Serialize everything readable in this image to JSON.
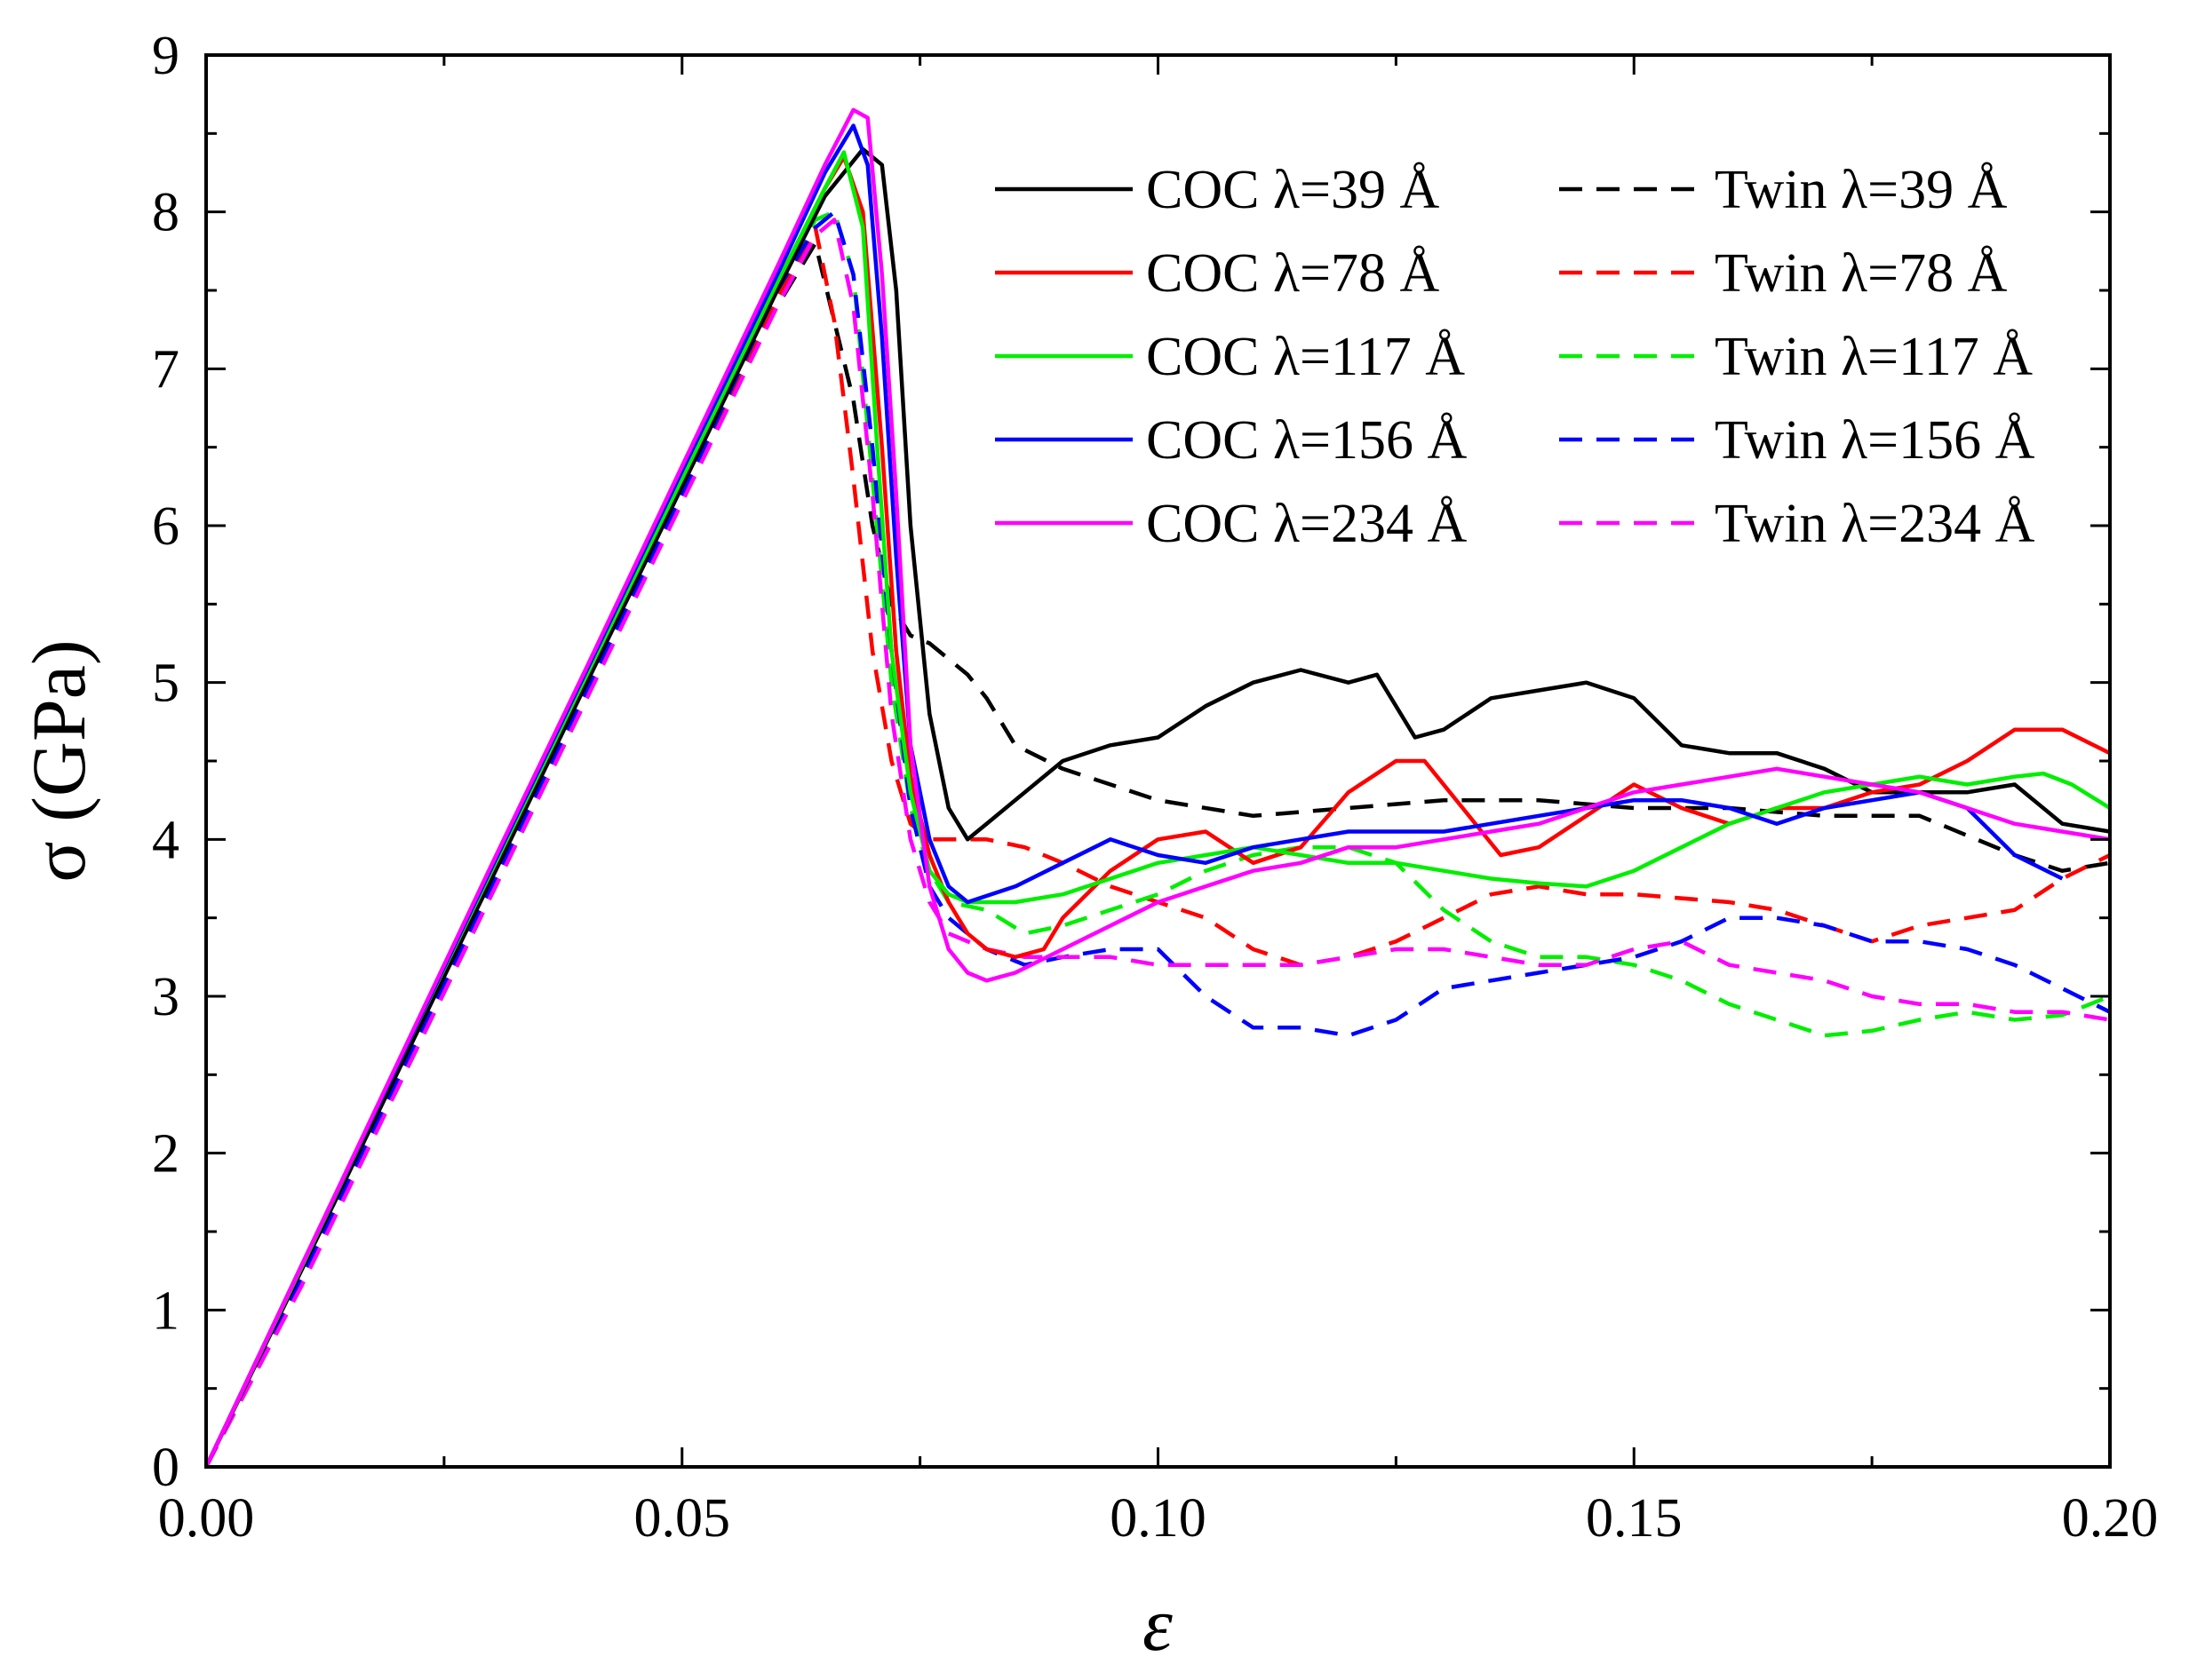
{
  "chart_data": {
    "type": "line",
    "title": "",
    "xlabel": "ε",
    "ylabel": "σ (GPa)",
    "xlim": [
      0,
      0.2
    ],
    "ylim": [
      0,
      9
    ],
    "x_ticks": [
      0,
      0.05,
      0.1,
      0.15,
      0.2
    ],
    "x_tick_labels": [
      "0.00",
      "0.05",
      "0.10",
      "0.15",
      "0.20"
    ],
    "y_ticks": [
      0,
      1,
      2,
      3,
      4,
      5,
      6,
      7,
      8,
      9
    ],
    "y_tick_labels": [
      "0",
      "1",
      "2",
      "3",
      "4",
      "5",
      "6",
      "7",
      "8",
      "9"
    ],
    "grid": false,
    "legend_position": "top-right",
    "series": [
      {
        "name": "COC λ=39 Å",
        "color": "#000000",
        "dash": "solid",
        "x": [
          0,
          0.01,
          0.02,
          0.03,
          0.04,
          0.05,
          0.06,
          0.065,
          0.069,
          0.071,
          0.0725,
          0.074,
          0.076,
          0.078,
          0.08,
          0.082,
          0.086,
          0.09,
          0.095,
          0.1,
          0.105,
          0.11,
          0.115,
          0.12,
          0.123,
          0.127,
          0.13,
          0.135,
          0.14,
          0.145,
          0.15,
          0.155,
          0.16,
          0.165,
          0.17,
          0.175,
          0.18,
          0.185,
          0.19,
          0.195,
          0.2
        ],
        "values": [
          0,
          1.25,
          2.5,
          3.75,
          5.0,
          6.25,
          7.5,
          8.1,
          8.4,
          8.3,
          7.5,
          6.0,
          4.8,
          4.2,
          4.0,
          4.1,
          4.3,
          4.5,
          4.6,
          4.65,
          4.85,
          5.0,
          5.08,
          5.0,
          5.05,
          4.65,
          4.7,
          4.9,
          4.95,
          5.0,
          4.9,
          4.6,
          4.55,
          4.55,
          4.45,
          4.3,
          4.3,
          4.3,
          4.35,
          4.1,
          4.05
        ]
      },
      {
        "name": "Twin λ=39 Å",
        "color": "#000000",
        "dash": "dashed",
        "x": [
          0,
          0.01,
          0.02,
          0.03,
          0.04,
          0.05,
          0.06,
          0.064,
          0.066,
          0.068,
          0.07,
          0.072,
          0.074,
          0.076,
          0.078,
          0.08,
          0.082,
          0.085,
          0.09,
          0.1,
          0.11,
          0.12,
          0.13,
          0.14,
          0.15,
          0.16,
          0.17,
          0.18,
          0.19,
          0.195,
          0.2
        ],
        "values": [
          0,
          1.2,
          2.4,
          3.65,
          4.9,
          6.2,
          7.4,
          7.8,
          7.3,
          6.8,
          6.0,
          5.5,
          5.3,
          5.25,
          5.15,
          5.05,
          4.9,
          4.6,
          4.45,
          4.25,
          4.15,
          4.2,
          4.25,
          4.25,
          4.2,
          4.2,
          4.15,
          4.15,
          3.9,
          3.8,
          3.85
        ]
      },
      {
        "name": "COC λ=78 Å",
        "color": "#ff0000",
        "dash": "solid",
        "x": [
          0,
          0.01,
          0.02,
          0.03,
          0.04,
          0.05,
          0.06,
          0.065,
          0.067,
          0.069,
          0.071,
          0.0725,
          0.074,
          0.076,
          0.078,
          0.08,
          0.082,
          0.085,
          0.088,
          0.09,
          0.095,
          0.1,
          0.105,
          0.11,
          0.115,
          0.12,
          0.125,
          0.128,
          0.132,
          0.136,
          0.14,
          0.145,
          0.15,
          0.155,
          0.16,
          0.165,
          0.17,
          0.175,
          0.18,
          0.185,
          0.19,
          0.195,
          0.2
        ],
        "values": [
          0,
          1.27,
          2.55,
          3.8,
          5.05,
          6.3,
          7.55,
          8.15,
          8.35,
          8.0,
          6.5,
          5.2,
          4.4,
          3.9,
          3.6,
          3.4,
          3.3,
          3.25,
          3.3,
          3.5,
          3.8,
          4.0,
          4.05,
          3.85,
          3.95,
          4.3,
          4.5,
          4.5,
          4.2,
          3.9,
          3.95,
          4.15,
          4.35,
          4.2,
          4.1,
          4.2,
          4.2,
          4.3,
          4.35,
          4.5,
          4.7,
          4.7,
          4.55
        ]
      },
      {
        "name": "Twin λ=78 Å",
        "color": "#ff0000",
        "dash": "dashed",
        "x": [
          0,
          0.01,
          0.02,
          0.03,
          0.04,
          0.05,
          0.06,
          0.064,
          0.066,
          0.068,
          0.07,
          0.072,
          0.074,
          0.076,
          0.078,
          0.082,
          0.086,
          0.09,
          0.095,
          0.1,
          0.105,
          0.11,
          0.115,
          0.12,
          0.125,
          0.13,
          0.135,
          0.14,
          0.145,
          0.15,
          0.16,
          0.165,
          0.17,
          0.175,
          0.18,
          0.185,
          0.19,
          0.195,
          0.2
        ],
        "values": [
          0,
          1.2,
          2.45,
          3.7,
          4.95,
          6.2,
          7.45,
          7.9,
          7.3,
          6.3,
          5.2,
          4.5,
          4.1,
          4.0,
          4.0,
          4.0,
          3.95,
          3.85,
          3.7,
          3.6,
          3.5,
          3.3,
          3.2,
          3.25,
          3.35,
          3.5,
          3.65,
          3.7,
          3.65,
          3.65,
          3.6,
          3.55,
          3.45,
          3.35,
          3.45,
          3.5,
          3.55,
          3.75,
          3.9
        ]
      },
      {
        "name": "COC λ=117 Å",
        "color": "#00ee00",
        "dash": "solid",
        "x": [
          0,
          0.01,
          0.02,
          0.03,
          0.04,
          0.05,
          0.06,
          0.065,
          0.067,
          0.069,
          0.0705,
          0.072,
          0.074,
          0.076,
          0.078,
          0.08,
          0.085,
          0.09,
          0.095,
          0.1,
          0.105,
          0.11,
          0.115,
          0.12,
          0.125,
          0.13,
          0.135,
          0.14,
          0.145,
          0.15,
          0.155,
          0.16,
          0.165,
          0.17,
          0.175,
          0.18,
          0.185,
          0.19,
          0.193,
          0.196,
          0.2
        ],
        "values": [
          0,
          1.27,
          2.55,
          3.8,
          5.05,
          6.3,
          7.55,
          8.15,
          8.38,
          7.9,
          6.5,
          5.2,
          4.3,
          3.8,
          3.65,
          3.6,
          3.6,
          3.65,
          3.75,
          3.85,
          3.9,
          3.95,
          3.9,
          3.85,
          3.85,
          3.8,
          3.75,
          3.72,
          3.7,
          3.8,
          3.95,
          4.1,
          4.2,
          4.3,
          4.35,
          4.4,
          4.35,
          4.4,
          4.42,
          4.35,
          4.2
        ]
      },
      {
        "name": "Twin λ=117 Å",
        "color": "#00ee00",
        "dash": "dashed",
        "x": [
          0,
          0.01,
          0.02,
          0.03,
          0.04,
          0.05,
          0.06,
          0.064,
          0.066,
          0.068,
          0.07,
          0.072,
          0.074,
          0.076,
          0.078,
          0.082,
          0.086,
          0.09,
          0.095,
          0.1,
          0.105,
          0.11,
          0.115,
          0.12,
          0.125,
          0.13,
          0.135,
          0.14,
          0.145,
          0.15,
          0.155,
          0.16,
          0.165,
          0.17,
          0.175,
          0.18,
          0.185,
          0.19,
          0.195,
          0.2
        ],
        "values": [
          0,
          1.2,
          2.45,
          3.7,
          4.95,
          6.2,
          7.5,
          7.95,
          8.0,
          7.6,
          6.3,
          5.0,
          4.2,
          3.8,
          3.6,
          3.55,
          3.4,
          3.45,
          3.55,
          3.65,
          3.8,
          3.9,
          3.95,
          3.95,
          3.85,
          3.55,
          3.35,
          3.25,
          3.25,
          3.2,
          3.1,
          2.95,
          2.85,
          2.75,
          2.78,
          2.85,
          2.9,
          2.85,
          2.88,
          3.0
        ]
      },
      {
        "name": "COC λ=156 Å",
        "color": "#0000ff",
        "dash": "solid",
        "x": [
          0,
          0.01,
          0.02,
          0.03,
          0.04,
          0.05,
          0.06,
          0.065,
          0.068,
          0.0695,
          0.071,
          0.0725,
          0.074,
          0.076,
          0.078,
          0.08,
          0.085,
          0.09,
          0.095,
          0.1,
          0.105,
          0.11,
          0.115,
          0.12,
          0.125,
          0.13,
          0.135,
          0.14,
          0.145,
          0.15,
          0.155,
          0.16,
          0.165,
          0.17,
          0.175,
          0.18,
          0.185,
          0.19,
          0.195
        ],
        "values": [
          0,
          1.28,
          2.55,
          3.82,
          5.08,
          6.35,
          7.6,
          8.25,
          8.55,
          8.3,
          7.2,
          5.8,
          4.6,
          4.0,
          3.7,
          3.6,
          3.7,
          3.85,
          4.0,
          3.9,
          3.85,
          3.95,
          4.0,
          4.05,
          4.05,
          4.05,
          4.1,
          4.15,
          4.2,
          4.25,
          4.25,
          4.2,
          4.1,
          4.2,
          4.25,
          4.3,
          4.2,
          3.9,
          3.75
        ]
      },
      {
        "name": "Twin λ=156 Å",
        "color": "#0000ff",
        "dash": "dashed",
        "x": [
          0,
          0.01,
          0.02,
          0.03,
          0.04,
          0.05,
          0.06,
          0.064,
          0.066,
          0.068,
          0.07,
          0.072,
          0.074,
          0.076,
          0.078,
          0.082,
          0.086,
          0.09,
          0.095,
          0.1,
          0.105,
          0.11,
          0.115,
          0.12,
          0.125,
          0.13,
          0.135,
          0.14,
          0.145,
          0.15,
          0.155,
          0.16,
          0.165,
          0.17,
          0.175,
          0.18,
          0.185,
          0.19,
          0.195,
          0.2
        ],
        "values": [
          0,
          1.2,
          2.45,
          3.7,
          4.95,
          6.2,
          7.5,
          7.9,
          8.0,
          7.6,
          6.5,
          5.2,
          4.2,
          3.7,
          3.5,
          3.3,
          3.2,
          3.25,
          3.3,
          3.3,
          3.0,
          2.8,
          2.8,
          2.75,
          2.85,
          3.05,
          3.1,
          3.15,
          3.2,
          3.25,
          3.35,
          3.5,
          3.5,
          3.45,
          3.35,
          3.35,
          3.3,
          3.2,
          3.05,
          2.9
        ]
      },
      {
        "name": "COC λ=234 Å",
        "color": "#ff00ff",
        "dash": "solid",
        "x": [
          0,
          0.01,
          0.02,
          0.03,
          0.04,
          0.05,
          0.06,
          0.065,
          0.068,
          0.0695,
          0.071,
          0.0725,
          0.074,
          0.076,
          0.078,
          0.08,
          0.082,
          0.085,
          0.09,
          0.095,
          0.1,
          0.105,
          0.11,
          0.115,
          0.12,
          0.125,
          0.13,
          0.135,
          0.14,
          0.145,
          0.15,
          0.155,
          0.16,
          0.165,
          0.17,
          0.175,
          0.18,
          0.185,
          0.19,
          0.195,
          0.2
        ],
        "values": [
          0,
          1.28,
          2.56,
          3.84,
          5.1,
          6.38,
          7.65,
          8.3,
          8.65,
          8.6,
          7.6,
          6.2,
          4.6,
          3.7,
          3.3,
          3.15,
          3.1,
          3.15,
          3.3,
          3.45,
          3.6,
          3.7,
          3.8,
          3.85,
          3.95,
          3.95,
          4.0,
          4.05,
          4.1,
          4.2,
          4.3,
          4.35,
          4.4,
          4.45,
          4.4,
          4.35,
          4.3,
          4.2,
          4.1,
          4.05,
          4.0
        ]
      },
      {
        "name": "Twin λ=234 Å",
        "color": "#ff00ff",
        "dash": "dashed",
        "x": [
          0,
          0.01,
          0.02,
          0.03,
          0.04,
          0.05,
          0.06,
          0.064,
          0.066,
          0.068,
          0.07,
          0.072,
          0.074,
          0.076,
          0.078,
          0.082,
          0.086,
          0.09,
          0.095,
          0.1,
          0.105,
          0.11,
          0.115,
          0.12,
          0.125,
          0.13,
          0.135,
          0.14,
          0.145,
          0.15,
          0.155,
          0.16,
          0.165,
          0.17,
          0.175,
          0.18,
          0.185,
          0.19,
          0.195,
          0.2
        ],
        "values": [
          0,
          1.15,
          2.4,
          3.65,
          4.9,
          6.15,
          7.4,
          7.85,
          7.95,
          7.4,
          6.2,
          4.8,
          4.0,
          3.6,
          3.4,
          3.3,
          3.25,
          3.25,
          3.25,
          3.2,
          3.2,
          3.2,
          3.2,
          3.25,
          3.3,
          3.3,
          3.25,
          3.2,
          3.2,
          3.3,
          3.35,
          3.2,
          3.15,
          3.1,
          3.0,
          2.95,
          2.95,
          2.9,
          2.9,
          2.85
        ]
      }
    ]
  }
}
